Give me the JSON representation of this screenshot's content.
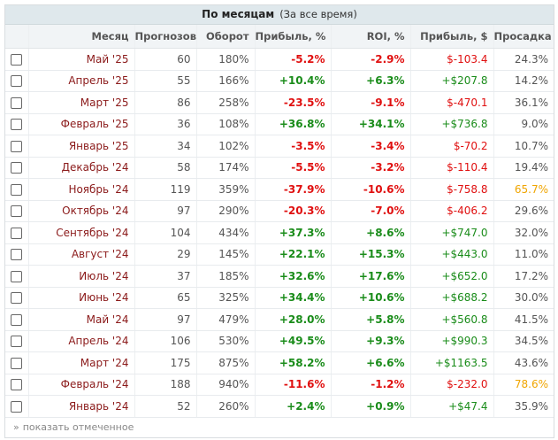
{
  "header": {
    "title": "По месяцам",
    "subtitle": "(За все время)"
  },
  "columns": [
    "Месяц",
    "Прогнозов",
    "Оборот",
    "Прибыль, %",
    "ROI, %",
    "Прибыль, $",
    "Просадка"
  ],
  "rows": [
    {
      "month": "Май '25",
      "forecasts": "60",
      "turnover": "180%",
      "profit_pct": "-5.2%",
      "roi": "-2.9%",
      "profit_usd": "$-103.4",
      "drawdown": "24.3%",
      "dd_high": false
    },
    {
      "month": "Апрель '25",
      "forecasts": "55",
      "turnover": "166%",
      "profit_pct": "+10.4%",
      "roi": "+6.3%",
      "profit_usd": "+$207.8",
      "drawdown": "14.2%",
      "dd_high": false
    },
    {
      "month": "Март '25",
      "forecasts": "86",
      "turnover": "258%",
      "profit_pct": "-23.5%",
      "roi": "-9.1%",
      "profit_usd": "$-470.1",
      "drawdown": "36.1%",
      "dd_high": false
    },
    {
      "month": "Февраль '25",
      "forecasts": "36",
      "turnover": "108%",
      "profit_pct": "+36.8%",
      "roi": "+34.1%",
      "profit_usd": "+$736.8",
      "drawdown": "9.0%",
      "dd_high": false
    },
    {
      "month": "Январь '25",
      "forecasts": "34",
      "turnover": "102%",
      "profit_pct": "-3.5%",
      "roi": "-3.4%",
      "profit_usd": "$-70.2",
      "drawdown": "10.7%",
      "dd_high": false
    },
    {
      "month": "Декабрь '24",
      "forecasts": "58",
      "turnover": "174%",
      "profit_pct": "-5.5%",
      "roi": "-3.2%",
      "profit_usd": "$-110.4",
      "drawdown": "19.4%",
      "dd_high": false
    },
    {
      "month": "Ноябрь '24",
      "forecasts": "119",
      "turnover": "359%",
      "profit_pct": "-37.9%",
      "roi": "-10.6%",
      "profit_usd": "$-758.8",
      "drawdown": "65.7%",
      "dd_high": true
    },
    {
      "month": "Октябрь '24",
      "forecasts": "97",
      "turnover": "290%",
      "profit_pct": "-20.3%",
      "roi": "-7.0%",
      "profit_usd": "$-406.2",
      "drawdown": "29.6%",
      "dd_high": false
    },
    {
      "month": "Сентябрь '24",
      "forecasts": "104",
      "turnover": "434%",
      "profit_pct": "+37.3%",
      "roi": "+8.6%",
      "profit_usd": "+$747.0",
      "drawdown": "32.0%",
      "dd_high": false
    },
    {
      "month": "Август '24",
      "forecasts": "29",
      "turnover": "145%",
      "profit_pct": "+22.1%",
      "roi": "+15.3%",
      "profit_usd": "+$443.0",
      "drawdown": "11.0%",
      "dd_high": false
    },
    {
      "month": "Июль '24",
      "forecasts": "37",
      "turnover": "185%",
      "profit_pct": "+32.6%",
      "roi": "+17.6%",
      "profit_usd": "+$652.0",
      "drawdown": "17.2%",
      "dd_high": false
    },
    {
      "month": "Июнь '24",
      "forecasts": "65",
      "turnover": "325%",
      "profit_pct": "+34.4%",
      "roi": "+10.6%",
      "profit_usd": "+$688.2",
      "drawdown": "30.0%",
      "dd_high": false
    },
    {
      "month": "Май '24",
      "forecasts": "97",
      "turnover": "479%",
      "profit_pct": "+28.0%",
      "roi": "+5.8%",
      "profit_usd": "+$560.8",
      "drawdown": "41.5%",
      "dd_high": false
    },
    {
      "month": "Апрель '24",
      "forecasts": "106",
      "turnover": "530%",
      "profit_pct": "+49.5%",
      "roi": "+9.3%",
      "profit_usd": "+$990.3",
      "drawdown": "34.5%",
      "dd_high": false
    },
    {
      "month": "Март '24",
      "forecasts": "175",
      "turnover": "875%",
      "profit_pct": "+58.2%",
      "roi": "+6.6%",
      "profit_usd": "+$1163.5",
      "drawdown": "43.6%",
      "dd_high": false
    },
    {
      "month": "Февраль '24",
      "forecasts": "188",
      "turnover": "940%",
      "profit_pct": "-11.6%",
      "roi": "-1.2%",
      "profit_usd": "$-232.0",
      "drawdown": "78.6%",
      "dd_high": true
    },
    {
      "month": "Январь '24",
      "forecasts": "52",
      "turnover": "260%",
      "profit_pct": "+2.4%",
      "roi": "+0.9%",
      "profit_usd": "+$47.4",
      "drawdown": "35.9%",
      "dd_high": false
    }
  ],
  "footer": {
    "arrow": "»",
    "link": "показать отмеченное"
  },
  "colors": {
    "positive": "#1a8c1a",
    "negative": "#e01010",
    "month": "#8b1a1a",
    "drawdown_high": "#f0a500",
    "header_bg": "#dfe8ec"
  }
}
